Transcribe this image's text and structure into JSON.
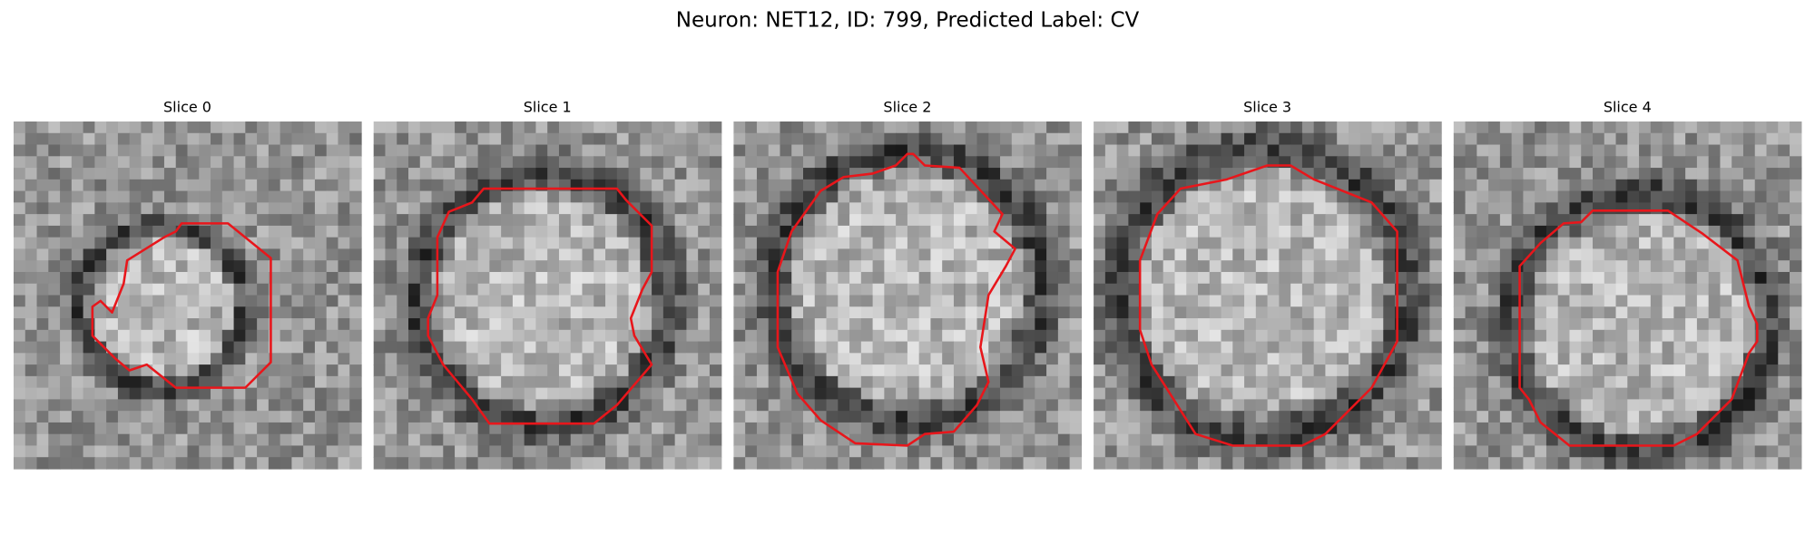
{
  "title": "Neuron: NET12, ID: 799, Predicted Label: CV",
  "panels": [
    {
      "title": "Slice 0"
    },
    {
      "title": "Slice 1"
    },
    {
      "title": "Slice 2"
    },
    {
      "title": "Slice 3"
    },
    {
      "title": "Slice 4"
    }
  ]
}
